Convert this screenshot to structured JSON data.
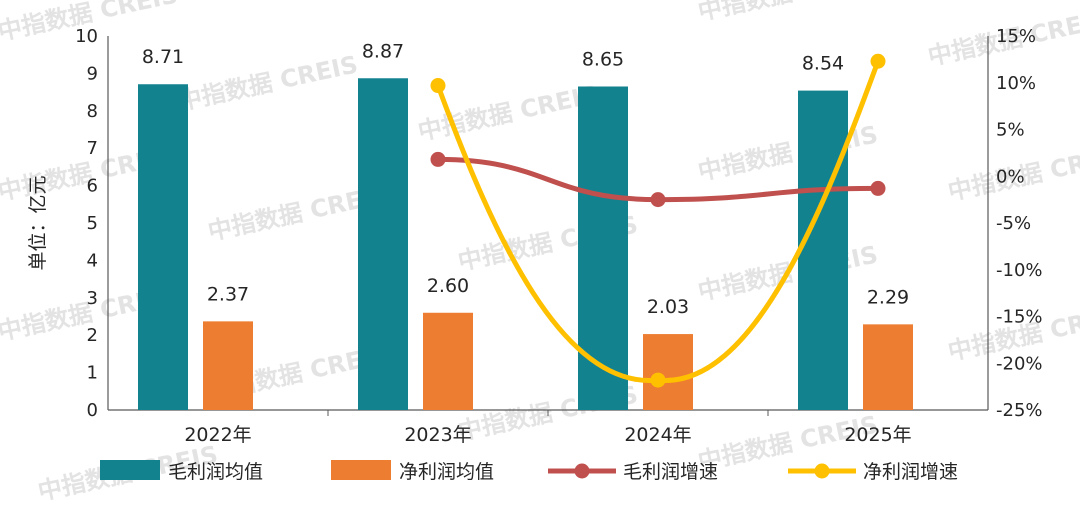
{
  "chart_data": {
    "type": "bar+line",
    "ylabel": "单位：亿元",
    "categories": [
      "2022年",
      "2023年",
      "2024年",
      "2025年"
    ],
    "left_axis": {
      "min": 0,
      "max": 10,
      "ticks": [
        "0",
        "1",
        "2",
        "3",
        "4",
        "5",
        "6",
        "7",
        "8",
        "9",
        "10"
      ]
    },
    "right_axis": {
      "min": -25,
      "max": 15,
      "ticks": [
        "-25%",
        "-20%",
        "-15%",
        "-10%",
        "-5%",
        "0%",
        "5%",
        "10%",
        "15%"
      ]
    },
    "bar_series": [
      {
        "name": "毛利润均值",
        "color": "#12828f",
        "values": [
          8.71,
          8.87,
          8.65,
          8.54
        ],
        "labels": [
          "8.71",
          "8.87",
          "8.65",
          "8.54"
        ]
      },
      {
        "name": "净利润均值",
        "color": "#ed7d31",
        "values": [
          2.37,
          2.6,
          2.03,
          2.29
        ],
        "labels": [
          "2.37",
          "2.60",
          "2.03",
          "2.29"
        ]
      }
    ],
    "line_series": [
      {
        "name": "毛利润增速",
        "color": "#c0504d",
        "values": [
          null,
          1.8,
          -2.5,
          -1.3
        ]
      },
      {
        "name": "净利润增速",
        "color": "#ffc000",
        "values": [
          null,
          9.7,
          -21.8,
          12.3
        ]
      }
    ],
    "watermark": "中指数据 CREIS"
  }
}
